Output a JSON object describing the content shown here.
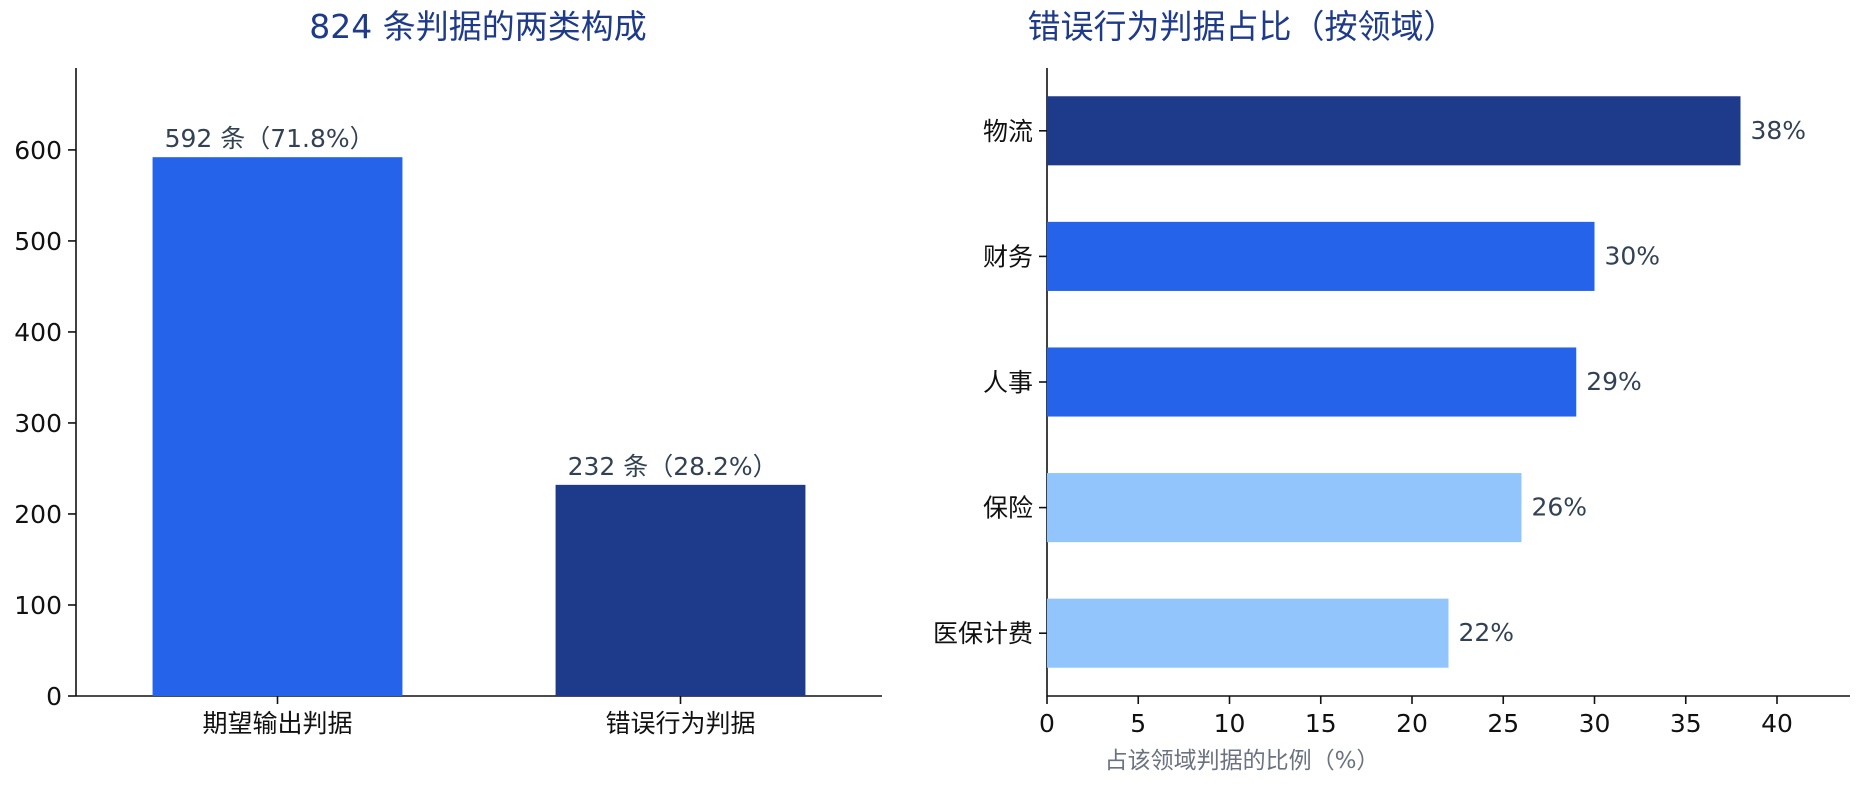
{
  "chart_data": [
    {
      "type": "bar",
      "title": "824 条判据的两类构成",
      "categories": [
        "期望输出判据",
        "错误行为判据"
      ],
      "values": [
        592,
        232
      ],
      "data_labels": [
        "592 条（71.8%）",
        "232 条（28.2%）"
      ],
      "colors": [
        "#2563eb",
        "#1e3a8a"
      ],
      "ylim": [
        0,
        690
      ],
      "yticks": [
        0,
        100,
        200,
        300,
        400,
        500,
        600
      ],
      "xlabel": "",
      "ylabel": ""
    },
    {
      "type": "bar",
      "orientation": "horizontal",
      "title": "错误行为判据占比（按领域）",
      "categories": [
        "物流",
        "财务",
        "人事",
        "保险",
        "医保计费"
      ],
      "values": [
        38,
        30,
        29,
        26,
        22
      ],
      "data_labels": [
        "38%",
        "30%",
        "29%",
        "26%",
        "22%"
      ],
      "colors": [
        "#1e3a8a",
        "#2563eb",
        "#2563eb",
        "#93c5fd",
        "#93c5fd"
      ],
      "xlim": [
        0,
        44
      ],
      "xticks": [
        0,
        5,
        10,
        15,
        20,
        25,
        30,
        35,
        40
      ],
      "xlabel": "占该领域判据的比例（%）",
      "ylabel": ""
    }
  ]
}
